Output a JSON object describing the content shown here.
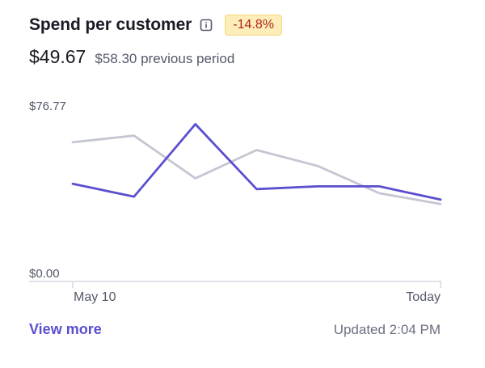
{
  "header": {
    "title": "Spend per customer",
    "badge": "-14.8%"
  },
  "amounts": {
    "current": "$49.67",
    "previous": "$58.30 previous period"
  },
  "chart_data": {
    "type": "line",
    "ylim": [
      0,
      76.77
    ],
    "y_tick_labels": [
      "$76.77",
      "$0.00"
    ],
    "x_tick_labels": [
      "May 10",
      "Today"
    ],
    "x": [
      0,
      1,
      2,
      3,
      4,
      5,
      6
    ],
    "series": [
      {
        "values": [
          42.7,
          37.1,
          68.8,
          40.4,
          41.6,
          41.6,
          35.8
        ]
      },
      {
        "values": [
          60.9,
          63.8,
          45.1,
          57.5,
          50.5,
          38.6,
          33.9
        ]
      }
    ],
    "colors": {
      "current": "#5a4fcf",
      "previous": "#c4c7d2",
      "axis": "#d5d8e0"
    }
  },
  "footer": {
    "link": "View more",
    "updated": "Updated 2:04 PM"
  }
}
